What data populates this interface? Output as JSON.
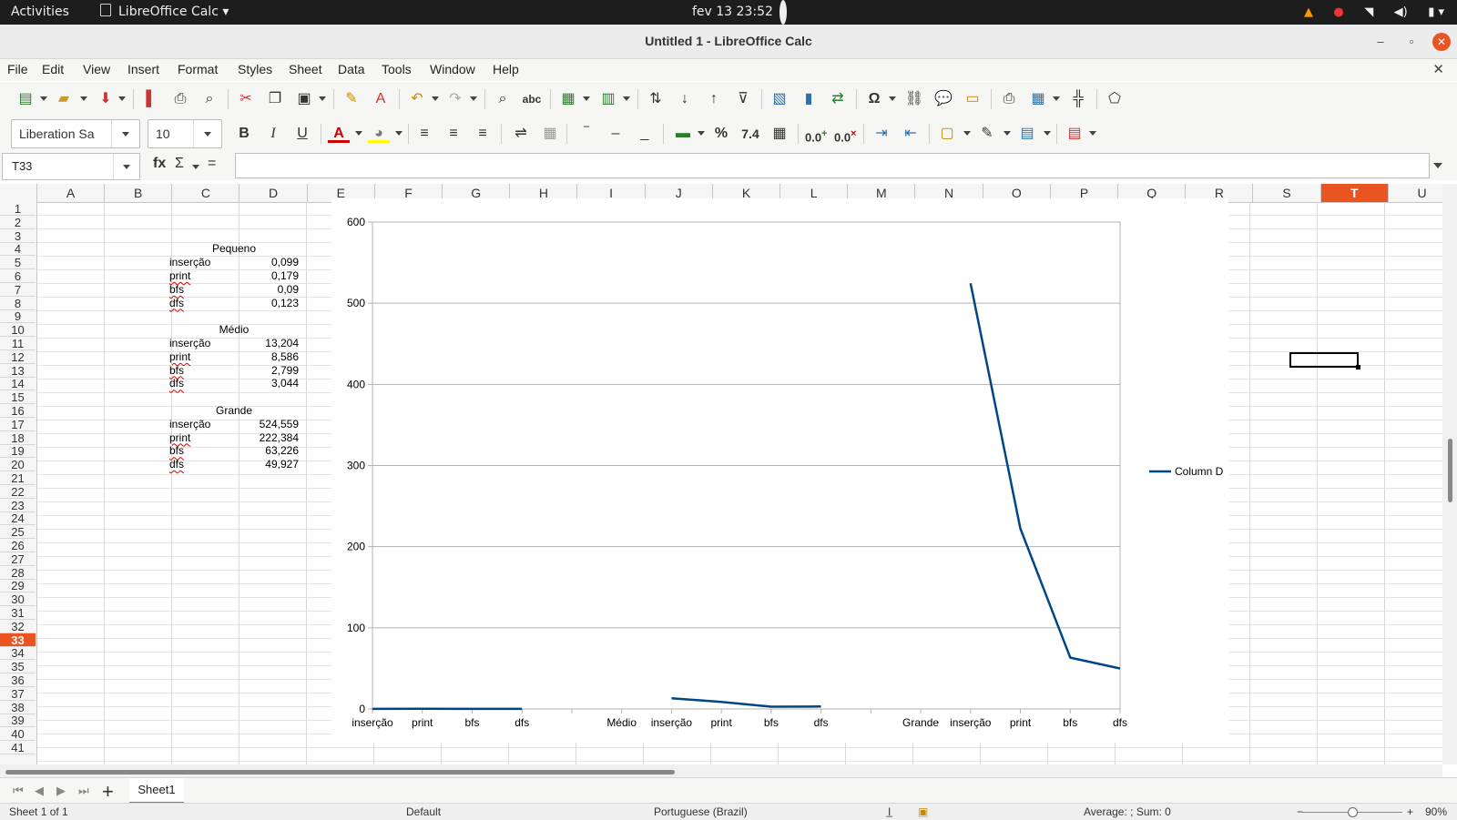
{
  "system": {
    "activities": "Activities",
    "app": "LibreOffice Calc",
    "clock": "fev 13  23:52"
  },
  "window": {
    "title": "Untitled 1 - LibreOffice Calc"
  },
  "menu": [
    "File",
    "Edit",
    "View",
    "Insert",
    "Format",
    "Styles",
    "Sheet",
    "Data",
    "Tools",
    "Window",
    "Help"
  ],
  "format": {
    "font_name": "Liberation Sa",
    "font_size": "10",
    "number_format": "7.4",
    "decimal_add": "0.0",
    "decimal_del": "0.0"
  },
  "formula": {
    "cell_ref": "T33",
    "content": ""
  },
  "columns": [
    "A",
    "B",
    "C",
    "D",
    "E",
    "F",
    "G",
    "H",
    "I",
    "J",
    "K",
    "L",
    "M",
    "N",
    "O",
    "P",
    "Q",
    "R",
    "S",
    "T",
    "U"
  ],
  "selected_column": "T",
  "selected_row": "33",
  "cells": [
    {
      "row": 4,
      "col": "C",
      "text": "Pequeno",
      "kind": "hdr"
    },
    {
      "row": 5,
      "col": "C",
      "text": "inserção",
      "kind": "lbl0"
    },
    {
      "row": 5,
      "col": "D",
      "text": "0,099",
      "kind": "num"
    },
    {
      "row": 6,
      "col": "C",
      "text": "print",
      "kind": "lbl"
    },
    {
      "row": 6,
      "col": "D",
      "text": "0,179",
      "kind": "num"
    },
    {
      "row": 7,
      "col": "C",
      "text": "bfs",
      "kind": "lbl"
    },
    {
      "row": 7,
      "col": "D",
      "text": "0,09",
      "kind": "num"
    },
    {
      "row": 8,
      "col": "C",
      "text": "dfs",
      "kind": "lbl"
    },
    {
      "row": 8,
      "col": "D",
      "text": "0,123",
      "kind": "num"
    },
    {
      "row": 10,
      "col": "C",
      "text": "Médio",
      "kind": "hdr"
    },
    {
      "row": 11,
      "col": "C",
      "text": "inserção",
      "kind": "lbl0"
    },
    {
      "row": 11,
      "col": "D",
      "text": "13,204",
      "kind": "num"
    },
    {
      "row": 12,
      "col": "C",
      "text": "print",
      "kind": "lbl"
    },
    {
      "row": 12,
      "col": "D",
      "text": "8,586",
      "kind": "num"
    },
    {
      "row": 13,
      "col": "C",
      "text": "bfs",
      "kind": "lbl"
    },
    {
      "row": 13,
      "col": "D",
      "text": "2,799",
      "kind": "num"
    },
    {
      "row": 14,
      "col": "C",
      "text": "dfs",
      "kind": "lbl"
    },
    {
      "row": 14,
      "col": "D",
      "text": "3,044",
      "kind": "num"
    },
    {
      "row": 16,
      "col": "C",
      "text": "Grande",
      "kind": "hdr"
    },
    {
      "row": 17,
      "col": "C",
      "text": "inserção",
      "kind": "lbl0"
    },
    {
      "row": 17,
      "col": "D",
      "text": "524,559",
      "kind": "num"
    },
    {
      "row": 18,
      "col": "C",
      "text": "print",
      "kind": "lbl"
    },
    {
      "row": 18,
      "col": "D",
      "text": "222,384",
      "kind": "num"
    },
    {
      "row": 19,
      "col": "C",
      "text": "bfs",
      "kind": "lbl"
    },
    {
      "row": 19,
      "col": "D",
      "text": "63,226",
      "kind": "num"
    },
    {
      "row": 20,
      "col": "C",
      "text": "dfs",
      "kind": "lbl"
    },
    {
      "row": 20,
      "col": "D",
      "text": "49,927",
      "kind": "num"
    }
  ],
  "chart_data": {
    "type": "line",
    "categories": [
      "inserção",
      "print",
      "bfs",
      "dfs",
      "",
      "Médio",
      "inserção",
      "print",
      "bfs",
      "dfs",
      "",
      "Grande",
      "inserção",
      "print",
      "bfs",
      "dfs"
    ],
    "series": [
      {
        "name": "Column D",
        "color": "#004586",
        "values": [
          0.099,
          0.179,
          0.09,
          0.123,
          null,
          null,
          13.204,
          8.586,
          2.799,
          3.044,
          null,
          null,
          524.559,
          222.384,
          63.226,
          49.927
        ]
      }
    ],
    "ylim": [
      0,
      600
    ],
    "yticks": [
      0,
      100,
      200,
      300,
      400,
      500,
      600
    ],
    "grid": true,
    "legend": "right"
  },
  "sheets": {
    "tab": "Sheet1"
  },
  "status": {
    "sheet": "Sheet 1 of 1",
    "style": "Default",
    "language": "Portuguese (Brazil)",
    "summary": "Average: ; Sum: 0",
    "zoom": "90%"
  }
}
